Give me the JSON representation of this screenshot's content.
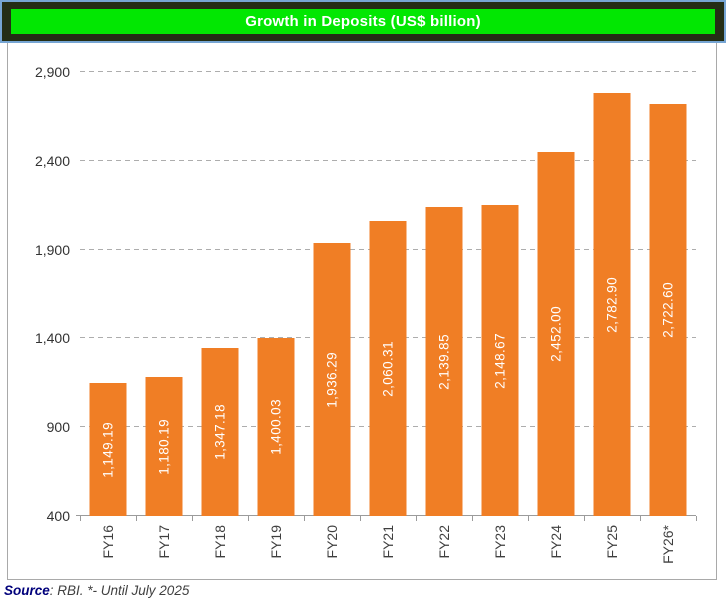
{
  "header": {
    "title": "Growth in Deposits (US$ billion)"
  },
  "source": {
    "label": "Source",
    "rest": ": RBI. *- Until July 2025"
  },
  "colors": {
    "bar": "#F07E25",
    "title_bg": "#02E702",
    "band_bg": "#242D15",
    "band_border": "#76A5D3",
    "grid": "#ADADAD",
    "axis": "#9B9B9B",
    "chart_border": "#A9A9A9",
    "bar_label": "#FFFFFF",
    "source_label": "#00007B"
  },
  "chart_data": {
    "type": "bar",
    "title": "Growth in Deposits (US$ billion)",
    "categories": [
      "FY16",
      "FY17",
      "FY18",
      "FY19",
      "FY20",
      "FY21",
      "FY22",
      "FY23",
      "FY24",
      "FY25",
      "FY26*"
    ],
    "values": [
      1149.19,
      1180.19,
      1347.18,
      1400.03,
      1936.29,
      2060.31,
      2139.85,
      2148.67,
      2452.0,
      2782.9,
      2722.6
    ],
    "value_labels": [
      "1,149.19",
      "1,180.19",
      "1,347.18",
      "1,400.03",
      "1,936.29",
      "2,060.31",
      "2,139.85",
      "2,148.67",
      "2,452.00",
      "2,782.90",
      "2,722.60"
    ],
    "xlabel": "",
    "ylabel": "",
    "ylim": [
      400,
      2900
    ],
    "yticks": [
      400,
      900,
      1400,
      1900,
      2400,
      2900
    ],
    "ytick_labels": [
      "400",
      "900",
      "1,400",
      "1,900",
      "2,400",
      "2,900"
    ],
    "grid": "dashed-horizontal",
    "legend": "none",
    "annotations": "* Until July 2025"
  }
}
